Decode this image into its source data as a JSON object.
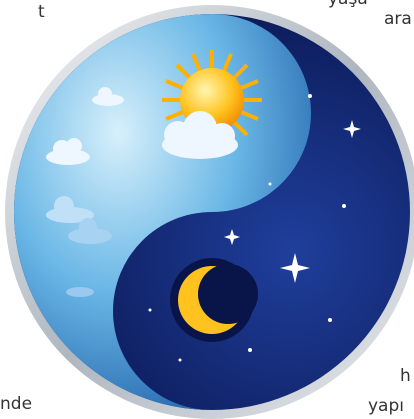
{
  "texts": {
    "top_left": "t",
    "top_cut": "yaşa",
    "top_right": "ara",
    "bottom_left": "nde",
    "bottom_right_1": "h",
    "bottom_right_2": "yapı"
  }
}
